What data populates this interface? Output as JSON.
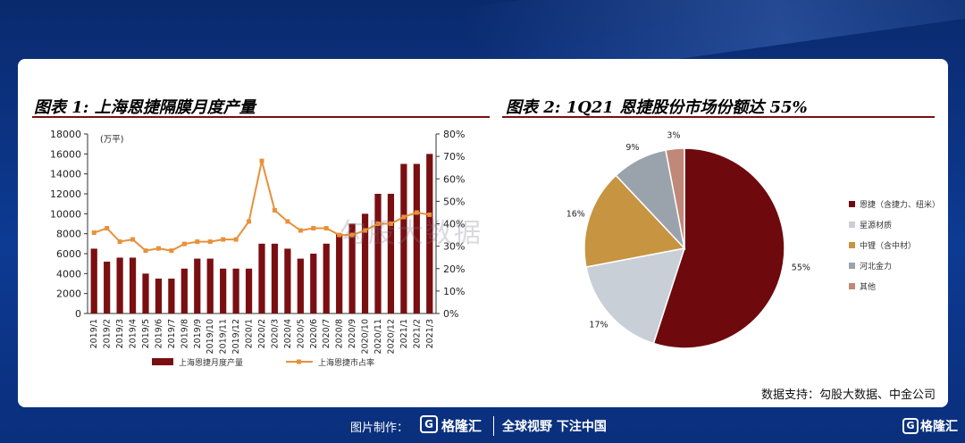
{
  "left_chart": {
    "title": "图表 1: 上海恩捷隔膜月度产量",
    "unit_label": "(万平)"
  },
  "right_chart": {
    "title": "图表 2: 1Q21 恩捷股份市场份额达 55%"
  },
  "source": "数据支持：勾股大数据、中金公司",
  "watermark": "勾股大数据",
  "footer": {
    "made_by": "图片制作：",
    "logo_char": "G",
    "brand": "格隆汇",
    "slogan": "全球视野 下注中国",
    "brand_right": "格隆汇"
  },
  "colors": {
    "bar": "#7a0f12",
    "line": "#e8903a",
    "pie": [
      "#6e0a0e",
      "#c9cfd6",
      "#c79442",
      "#9aa3ac",
      "#c08878"
    ]
  },
  "chart_data": [
    {
      "type": "bar",
      "categories": [
        "2019/1",
        "2019/2",
        "2019/3",
        "2019/4",
        "2019/5",
        "2019/6",
        "2019/7",
        "2019/8",
        "2019/9",
        "2019/10",
        "2019/11",
        "2019/12",
        "2020/1",
        "2020/2",
        "2020/3",
        "2020/4",
        "2020/5",
        "2020/6",
        "2020/7",
        "2020/8",
        "2020/9",
        "2020/10",
        "2020/11",
        "2020/12",
        "2021/1",
        "2021/2",
        "2021/3"
      ],
      "series": [
        {
          "name": "上海恩捷月度产量",
          "type": "bar",
          "axis": "left",
          "values": [
            6500,
            5200,
            5600,
            5600,
            4000,
            3500,
            3500,
            4500,
            5500,
            5500,
            4500,
            4500,
            4500,
            7000,
            7000,
            6500,
            5500,
            6000,
            7000,
            8000,
            9000,
            10000,
            12000,
            12000,
            15000,
            15000,
            16000
          ]
        },
        {
          "name": "上海恩捷市占率",
          "type": "line",
          "axis": "right",
          "values": [
            36,
            38,
            32,
            33,
            28,
            29,
            28,
            31,
            32,
            32,
            33,
            33,
            41,
            68,
            46,
            41,
            37,
            38,
            38,
            35,
            35,
            37,
            40,
            40,
            43,
            45,
            44
          ]
        }
      ],
      "y_left": {
        "min": 0,
        "max": 18000,
        "ticks": [
          0,
          2000,
          4000,
          6000,
          8000,
          10000,
          12000,
          14000,
          16000,
          18000
        ]
      },
      "y_right": {
        "min": 0,
        "max": 80,
        "ticks": [
          "0%",
          "10%",
          "20%",
          "30%",
          "40%",
          "50%",
          "60%",
          "70%",
          "80%"
        ]
      },
      "legend": "bottom"
    },
    {
      "type": "pie",
      "slices": [
        {
          "name": "恩捷（含捷力、纽米）",
          "value": 55,
          "label": "55%"
        },
        {
          "name": "星源材质",
          "value": 17,
          "label": "17%"
        },
        {
          "name": "中锂（含中材）",
          "value": 16,
          "label": "16%"
        },
        {
          "name": "河北金力",
          "value": 9,
          "label": "9%"
        },
        {
          "name": "其他",
          "value": 3,
          "label": "3%"
        }
      ],
      "legend": "right"
    }
  ]
}
